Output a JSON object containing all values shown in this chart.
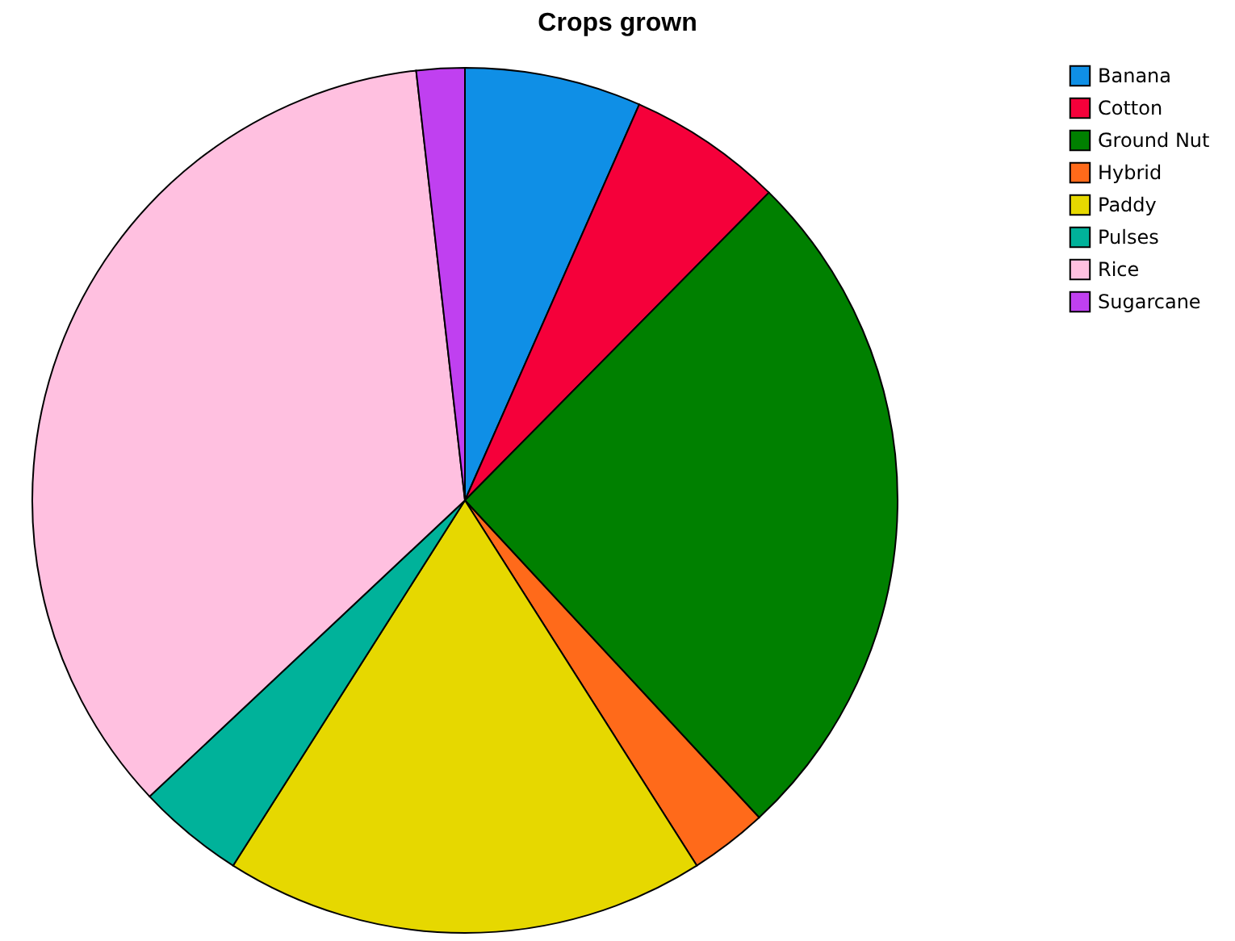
{
  "chart_data": {
    "type": "pie",
    "title": "Crops grown",
    "categories": [
      "Banana",
      "Cotton",
      "Ground Nut",
      "Hybrid",
      "Paddy",
      "Pulses",
      "Rice",
      "Sugarcane"
    ],
    "values": [
      6.6,
      5.8,
      25.7,
      2.9,
      18.0,
      4.0,
      35.2,
      1.8
    ],
    "colors": [
      "#0f8fe6",
      "#f5003a",
      "#008000",
      "#ff6a1a",
      "#e6d800",
      "#00b29a",
      "#ffc0e0",
      "#c040f0"
    ],
    "legend": "top right"
  }
}
